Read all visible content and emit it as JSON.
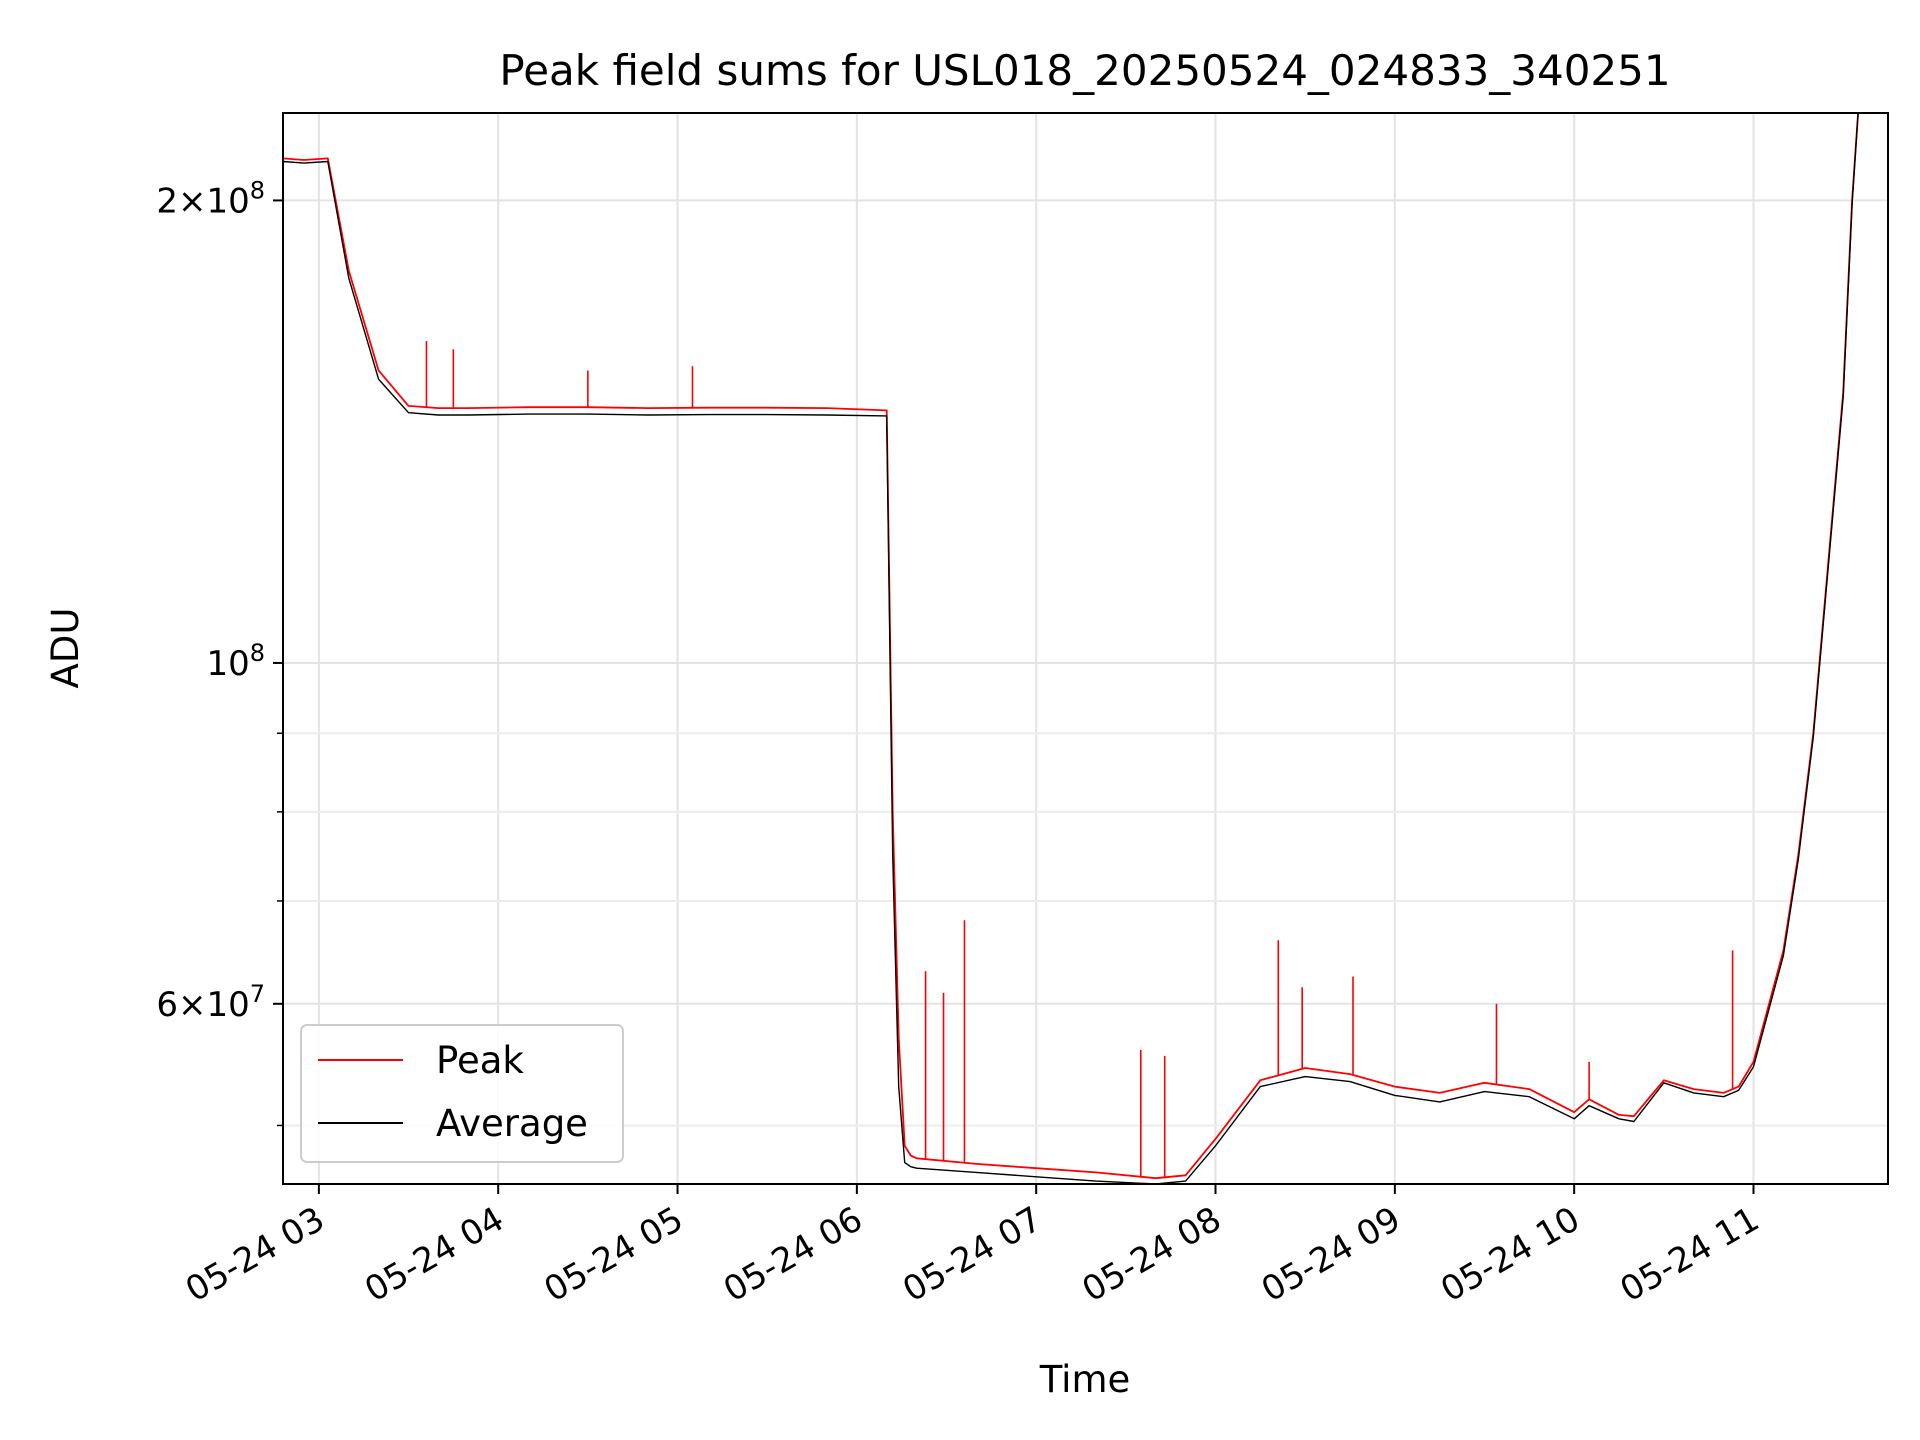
{
  "chart_data": {
    "type": "line",
    "title": "Peak field sums for USL018_20250524_024833_340251",
    "xlabel": "Time",
    "ylabel": "ADU",
    "y_scale": "log",
    "grid": true,
    "legend_position": "lower-left",
    "xlim": [
      "2025-05-24 02:48",
      "2025-05-24 11:45"
    ],
    "ylim": [
      45800000,
      228000000
    ],
    "x_ticks": [
      {
        "t": "2025-05-24 03:00",
        "label": "05-24 03"
      },
      {
        "t": "2025-05-24 04:00",
        "label": "05-24 04"
      },
      {
        "t": "2025-05-24 05:00",
        "label": "05-24 05"
      },
      {
        "t": "2025-05-24 06:00",
        "label": "05-24 06"
      },
      {
        "t": "2025-05-24 07:00",
        "label": "05-24 07"
      },
      {
        "t": "2025-05-24 08:00",
        "label": "05-24 08"
      },
      {
        "t": "2025-05-24 09:00",
        "label": "05-24 09"
      },
      {
        "t": "2025-05-24 10:00",
        "label": "05-24 10"
      },
      {
        "t": "2025-05-24 11:00",
        "label": "05-24 11"
      }
    ],
    "y_major_ticks": [
      {
        "value": 200000000,
        "base": "2×10",
        "exp": "8"
      },
      {
        "value": 100000000,
        "base": "10",
        "exp": "8"
      },
      {
        "value": 60000000,
        "base": "6×10",
        "exp": "7"
      }
    ],
    "y_minor_ticks": [
      50000000,
      70000000,
      80000000,
      90000000
    ],
    "series": [
      {
        "name": "Peak",
        "color": "#ff0000",
        "x": [
          "2025-05-24 02:48",
          "2025-05-24 02:55",
          "2025-05-24 03:03",
          "2025-05-24 03:10",
          "2025-05-24 03:20",
          "2025-05-24 03:30",
          "2025-05-24 03:40",
          "2025-05-24 03:50",
          "2025-05-24 04:10",
          "2025-05-24 04:30",
          "2025-05-24 04:50",
          "2025-05-24 05:10",
          "2025-05-24 05:30",
          "2025-05-24 05:50",
          "2025-05-24 06:10",
          "2025-05-24 06:12",
          "2025-05-24 06:14",
          "2025-05-24 06:16",
          "2025-05-24 06:18",
          "2025-05-24 06:20",
          "2025-05-24 06:40",
          "2025-05-24 07:00",
          "2025-05-24 07:20",
          "2025-05-24 07:40",
          "2025-05-24 07:50",
          "2025-05-24 08:00",
          "2025-05-24 08:15",
          "2025-05-24 08:30",
          "2025-05-24 08:45",
          "2025-05-24 09:00",
          "2025-05-24 09:15",
          "2025-05-24 09:30",
          "2025-05-24 09:45",
          "2025-05-24 10:00",
          "2025-05-24 10:05",
          "2025-05-24 10:15",
          "2025-05-24 10:20",
          "2025-05-24 10:30",
          "2025-05-24 10:40",
          "2025-05-24 10:50",
          "2025-05-24 10:55",
          "2025-05-24 11:00",
          "2025-05-24 11:10",
          "2025-05-24 11:15",
          "2025-05-24 11:20",
          "2025-05-24 11:30",
          "2025-05-24 11:33",
          "2025-05-24 11:35"
        ],
        "y": [
          213000000,
          212500000,
          213000000,
          180000000,
          155000000,
          147000000,
          146500000,
          146500000,
          146700000,
          146700000,
          146500000,
          146600000,
          146600000,
          146500000,
          146000000,
          80000000,
          57000000,
          48500000,
          47800000,
          47600000,
          47200000,
          46900000,
          46600000,
          46200000,
          46400000,
          49000000,
          53500000,
          54500000,
          54000000,
          53000000,
          52500000,
          53300000,
          52800000,
          51000000,
          52000000,
          50800000,
          50700000,
          53500000,
          52800000,
          52500000,
          53000000,
          55000000,
          65000000,
          75000000,
          90000000,
          150000000,
          200000000,
          228000000
        ]
      },
      {
        "name": "Average",
        "color": "#000000",
        "x": [
          "2025-05-24 02:48",
          "2025-05-24 02:55",
          "2025-05-24 03:03",
          "2025-05-24 03:10",
          "2025-05-24 03:20",
          "2025-05-24 03:30",
          "2025-05-24 03:40",
          "2025-05-24 03:50",
          "2025-05-24 04:10",
          "2025-05-24 04:30",
          "2025-05-24 04:50",
          "2025-05-24 05:10",
          "2025-05-24 05:30",
          "2025-05-24 05:50",
          "2025-05-24 06:10",
          "2025-05-24 06:12",
          "2025-05-24 06:14",
          "2025-05-24 06:16",
          "2025-05-24 06:18",
          "2025-05-24 06:20",
          "2025-05-24 06:40",
          "2025-05-24 07:00",
          "2025-05-24 07:20",
          "2025-05-24 07:40",
          "2025-05-24 07:50",
          "2025-05-24 08:00",
          "2025-05-24 08:15",
          "2025-05-24 08:30",
          "2025-05-24 08:45",
          "2025-05-24 09:00",
          "2025-05-24 09:15",
          "2025-05-24 09:30",
          "2025-05-24 09:45",
          "2025-05-24 10:00",
          "2025-05-24 10:05",
          "2025-05-24 10:15",
          "2025-05-24 10:20",
          "2025-05-24 10:30",
          "2025-05-24 10:40",
          "2025-05-24 10:50",
          "2025-05-24 10:55",
          "2025-05-24 11:00",
          "2025-05-24 11:10",
          "2025-05-24 11:15",
          "2025-05-24 11:20",
          "2025-05-24 11:30",
          "2025-05-24 11:33",
          "2025-05-24 11:35"
        ],
        "y": [
          212000000,
          211500000,
          212000000,
          178000000,
          153000000,
          145500000,
          145000000,
          145000000,
          145200000,
          145200000,
          145000000,
          145100000,
          145100000,
          145000000,
          144800000,
          75000000,
          53000000,
          47300000,
          47000000,
          46900000,
          46600000,
          46300000,
          46000000,
          45800000,
          46000000,
          48500000,
          53000000,
          53800000,
          53400000,
          52300000,
          51800000,
          52600000,
          52200000,
          50500000,
          51500000,
          50500000,
          50300000,
          53300000,
          52500000,
          52200000,
          52700000,
          54600000,
          64500000,
          74500000,
          89500000,
          149000000,
          199000000,
          228000000
        ]
      }
    ],
    "spikes": [
      {
        "x": "2025-05-24 03:36",
        "peak": 162000000
      },
      {
        "x": "2025-05-24 03:45",
        "peak": 160000000
      },
      {
        "x": "2025-05-24 04:30",
        "peak": 155000000
      },
      {
        "x": "2025-05-24 05:05",
        "peak": 156000000
      },
      {
        "x": "2025-05-24 06:23",
        "peak": 63000000
      },
      {
        "x": "2025-05-24 06:29",
        "peak": 61000000
      },
      {
        "x": "2025-05-24 06:36",
        "peak": 68000000
      },
      {
        "x": "2025-05-24 07:35",
        "peak": 56000000
      },
      {
        "x": "2025-05-24 07:43",
        "peak": 55500000
      },
      {
        "x": "2025-05-24 08:21",
        "peak": 66000000
      },
      {
        "x": "2025-05-24 08:29",
        "peak": 61500000
      },
      {
        "x": "2025-05-24 08:46",
        "peak": 62500000
      },
      {
        "x": "2025-05-24 09:34",
        "peak": 60000000
      },
      {
        "x": "2025-05-24 10:05",
        "peak": 55000000
      },
      {
        "x": "2025-05-24 10:53",
        "peak": 65000000
      }
    ]
  }
}
